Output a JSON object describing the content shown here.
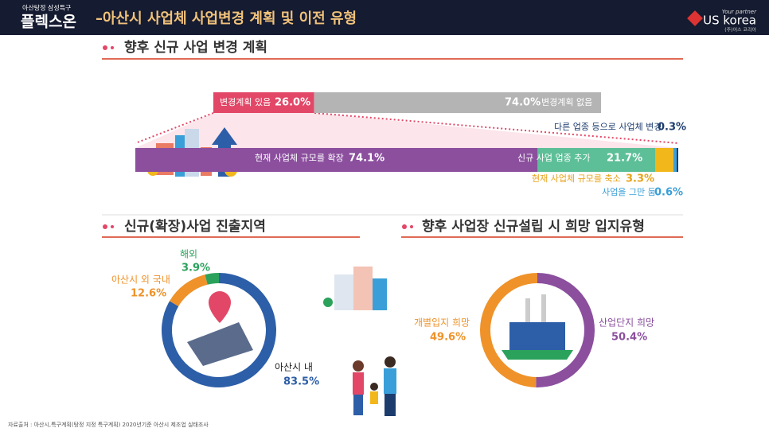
{
  "header": {
    "kicker": "아산탕정 삼성특구",
    "brand": "플렉스온",
    "title": "–아산시 사업체 사업변경 계획 및 이전 유형",
    "logo_tagline": "Your partner",
    "logo_name": "US korea",
    "logo_company": "(주)어스 코리아"
  },
  "chart_data": [
    {
      "type": "stacked_bar",
      "title": "향후 신규 사업 변경 계획",
      "categories": [
        "변경계획 있음",
        "변경계획 없음"
      ],
      "values": [
        26.0,
        74.0
      ],
      "value_labels": [
        "26.0%",
        "74.0%"
      ],
      "colors": [
        "#e34767",
        "#b4b4b4"
      ]
    },
    {
      "type": "stacked_bar",
      "categories": [
        "현재 사업체 규모를 확장",
        "신규 사업 업종 추가",
        "현재 사업체 규모를 축소",
        "사업을 그만 둠",
        "다른 업종 등으로 사업체 변경"
      ],
      "values": [
        74.1,
        21.7,
        3.3,
        0.6,
        0.3
      ],
      "value_labels": [
        "74.1%",
        "21.7%",
        "3.3%",
        "0.6%",
        "0.3%"
      ],
      "colors": [
        "#8b4f9e",
        "#5dbf98",
        "#f2b71b",
        "#3a9fd8",
        "#1d3c6e"
      ]
    },
    {
      "type": "donut",
      "title": "신규(확장)사업 진출지역",
      "categories": [
        "아산시 내",
        "아산시 외 국내",
        "해외"
      ],
      "values": [
        83.5,
        12.6,
        3.9
      ],
      "value_labels": [
        "83.5%",
        "12.6%",
        "3.9%"
      ],
      "colors": [
        "#2d5ea8",
        "#ef922a",
        "#2ba25b"
      ]
    },
    {
      "type": "donut",
      "title": "향후 사업장 신규설립 시 희망 입지유형",
      "categories": [
        "산업단지 희망",
        "개별입지 희망"
      ],
      "values": [
        50.4,
        49.6
      ],
      "value_labels": [
        "50.4%",
        "49.6%"
      ],
      "colors": [
        "#8b4f9e",
        "#ef922a"
      ]
    }
  ],
  "footer": {
    "source": "자료출처 : 아산시,특구계획(탕정 지정 특구계획) 2020년기준 아산시 제조업 실태조사"
  }
}
